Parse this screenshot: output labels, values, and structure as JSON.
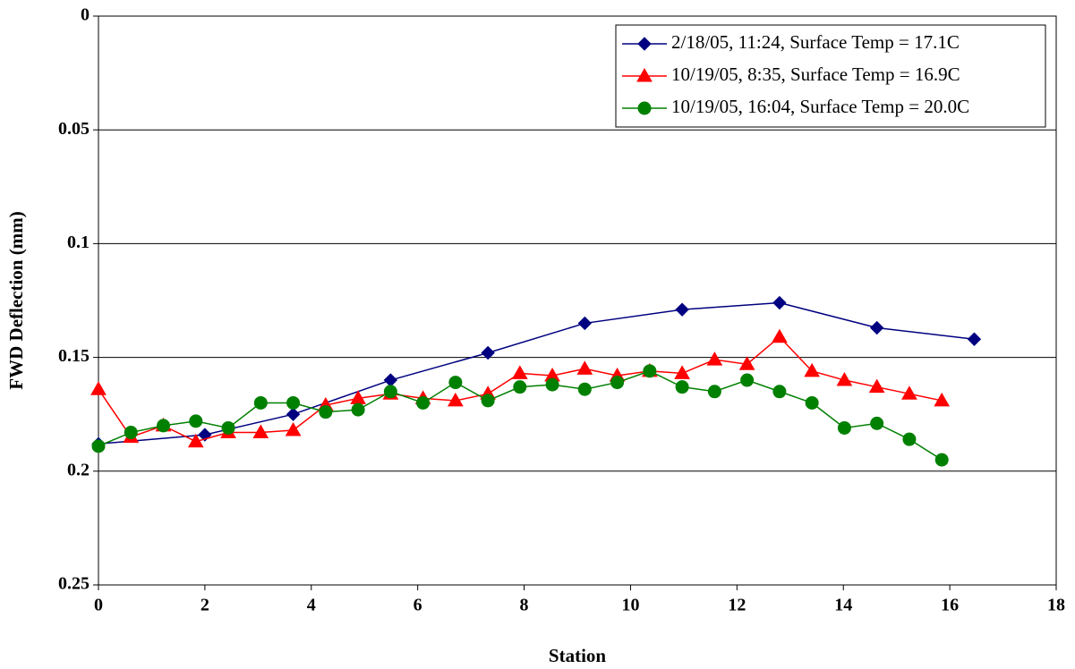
{
  "chart_data": {
    "type": "line",
    "xlabel": "Station",
    "ylabel": "FWD Deflection (mm)",
    "xlim": [
      0,
      18
    ],
    "xticks": [
      0,
      2,
      4,
      6,
      8,
      10,
      12,
      14,
      16,
      18
    ],
    "ylim": [
      0,
      0.25
    ],
    "yticks": [
      0,
      0.05,
      0.1,
      0.15,
      0.2,
      0.25
    ],
    "y_inverted": true,
    "grid": true,
    "legend": "upper right",
    "series": [
      {
        "name": "2/18/05, 11:24, Surface Temp = 17.1C",
        "color": "#000080",
        "marker": "diamond",
        "x": [
          0,
          2,
          3.66,
          5.49,
          7.32,
          9.14,
          10.97,
          12.8,
          14.63,
          16.46
        ],
        "values": [
          0.188,
          0.184,
          0.175,
          0.16,
          0.148,
          0.135,
          0.129,
          0.126,
          0.137,
          0.142
        ]
      },
      {
        "name": "10/19/05, 8:35, Surface Temp = 16.9C",
        "color": "#ff0000",
        "marker": "triangle",
        "x": [
          0,
          0.61,
          1.22,
          1.83,
          2.44,
          3.05,
          3.66,
          4.27,
          4.88,
          5.49,
          6.1,
          6.71,
          7.32,
          7.92,
          8.53,
          9.14,
          9.75,
          10.36,
          10.97,
          11.58,
          12.19,
          12.8,
          13.41,
          14.02,
          14.63,
          15.24,
          15.85
        ],
        "values": [
          0.164,
          0.185,
          0.18,
          0.187,
          0.183,
          0.183,
          0.182,
          0.171,
          0.168,
          0.166,
          0.168,
          0.169,
          0.166,
          0.157,
          0.158,
          0.155,
          0.158,
          0.156,
          0.157,
          0.151,
          0.153,
          0.141,
          0.156,
          0.16,
          0.163,
          0.166,
          0.169
        ]
      },
      {
        "name": "10/19/05, 16:04, Surface Temp = 20.0C",
        "color": "#008000",
        "marker": "circle",
        "x": [
          0,
          0.61,
          1.22,
          1.83,
          2.44,
          3.05,
          3.66,
          4.27,
          4.88,
          5.49,
          6.1,
          6.71,
          7.32,
          7.92,
          8.53,
          9.14,
          9.75,
          10.36,
          10.97,
          11.58,
          12.19,
          12.8,
          13.41,
          14.02,
          14.63,
          15.24,
          15.85
        ],
        "values": [
          0.189,
          0.183,
          0.18,
          0.178,
          0.181,
          0.17,
          0.17,
          0.174,
          0.173,
          0.165,
          0.17,
          0.161,
          0.169,
          0.163,
          0.162,
          0.164,
          0.161,
          0.156,
          0.163,
          0.165,
          0.16,
          0.165,
          0.17,
          0.181,
          0.179,
          0.186,
          0.195
        ]
      }
    ]
  }
}
